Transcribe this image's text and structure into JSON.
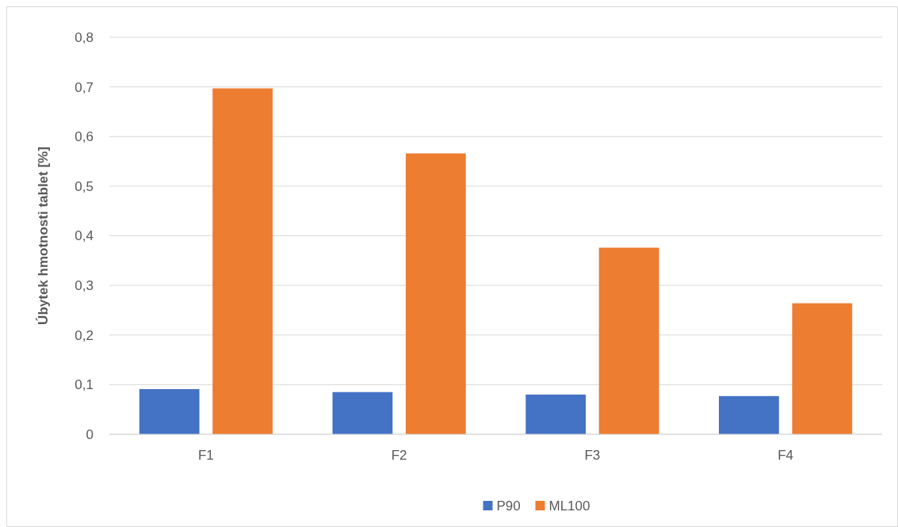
{
  "chart_data": {
    "type": "bar",
    "ylabel": "Úbytek hmotnosti tablet [%]",
    "categories": [
      "F1",
      "F2",
      "F3",
      "F4"
    ],
    "series": [
      {
        "name": "P90",
        "color": "#4472c4",
        "values": [
          0.091,
          0.085,
          0.08,
          0.077
        ]
      },
      {
        "name": "ML100",
        "color": "#ed7d31",
        "values": [
          0.697,
          0.566,
          0.376,
          0.264
        ]
      }
    ],
    "ylim": [
      0,
      0.8
    ],
    "yticks": [
      0,
      {
        "value": 0.1,
        "label": "0,1"
      },
      {
        "value": 0.2,
        "label": "0,2"
      },
      {
        "value": 0.3,
        "label": "0,3"
      },
      {
        "value": 0.4,
        "label": "0,4"
      },
      {
        "value": 0.5,
        "label": "0,5"
      },
      {
        "value": 0.6,
        "label": "0,6"
      },
      {
        "value": 0.7,
        "label": "0,7"
      },
      {
        "value": 0.8,
        "label": "0,8"
      }
    ],
    "grid": "y",
    "legend": "bottom"
  }
}
